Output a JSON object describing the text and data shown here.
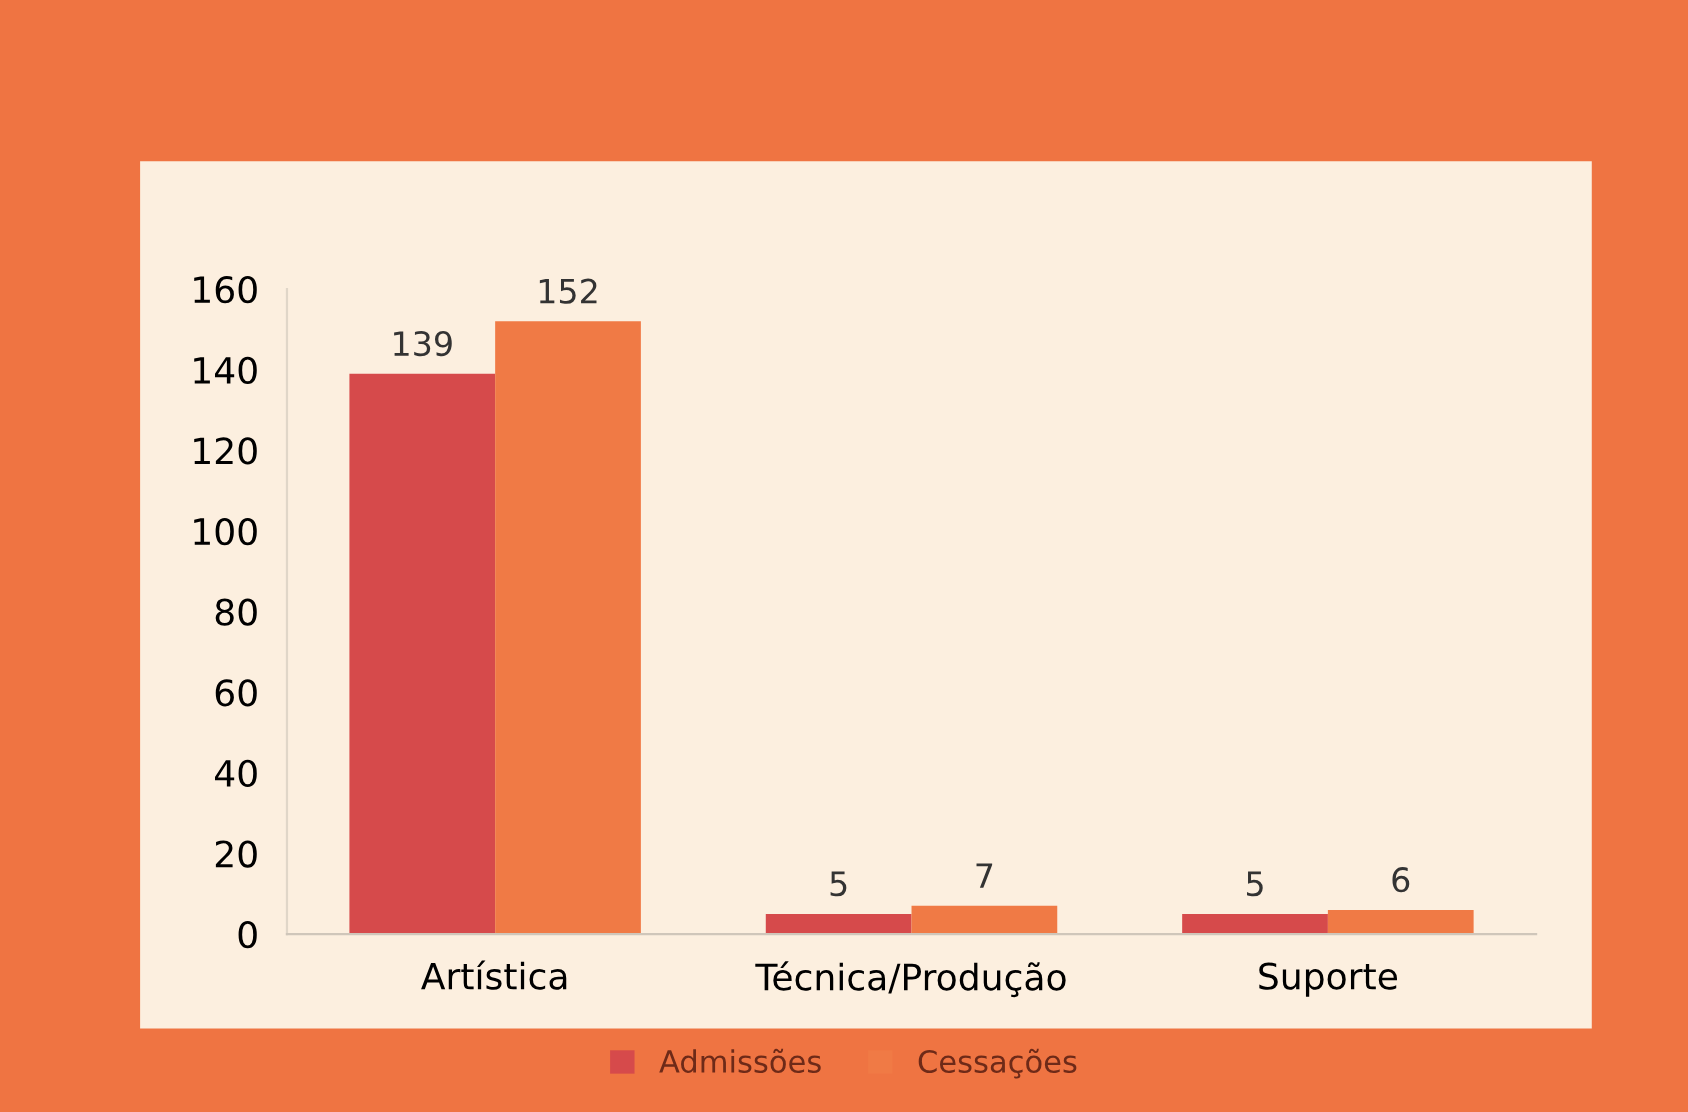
{
  "chart_data": {
    "type": "bar",
    "categories": [
      "Artística",
      "Técnica/Produção",
      "Suporte"
    ],
    "series": [
      {
        "name": "Admissões",
        "color": "#d64a4b",
        "values": [
          139,
          5,
          5
        ]
      },
      {
        "name": "Cessações",
        "color": "#f07a45",
        "values": [
          152,
          7,
          6
        ]
      }
    ],
    "ylim": [
      0,
      160
    ],
    "yticks": [
      0,
      20,
      40,
      60,
      80,
      100,
      120,
      140,
      160
    ],
    "data_labels": true,
    "legend": "bottom",
    "grid": false
  }
}
